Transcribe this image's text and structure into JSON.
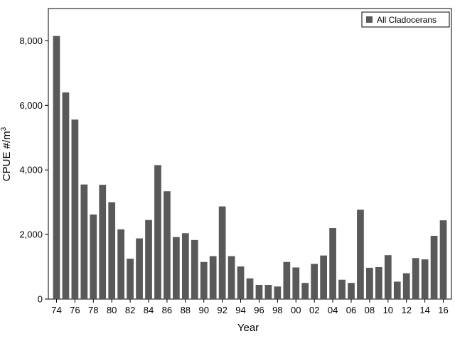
{
  "chart_data": {
    "type": "bar",
    "title": "",
    "xlabel": "Year",
    "ylabel": "CPUE #/m",
    "ylabel_superscript": "3",
    "ylim": [
      0,
      9000
    ],
    "yticks": [
      0,
      2000,
      4000,
      6000,
      8000
    ],
    "ytick_labels": [
      "0",
      "2,000",
      "4,000",
      "6,000",
      "8,000"
    ],
    "grid": false,
    "legend_position": "top-right",
    "bar_color": "#595959",
    "categories": [
      "74",
      "75",
      "76",
      "77",
      "78",
      "79",
      "80",
      "81",
      "82",
      "83",
      "84",
      "85",
      "86",
      "87",
      "88",
      "89",
      "90",
      "91",
      "92",
      "93",
      "94",
      "95",
      "96",
      "97",
      "98",
      "99",
      "00",
      "01",
      "02",
      "03",
      "04",
      "05",
      "06",
      "07",
      "08",
      "09",
      "10",
      "11",
      "12",
      "13",
      "14",
      "15",
      "16"
    ],
    "xtick_labels": [
      "74",
      "76",
      "78",
      "80",
      "82",
      "84",
      "86",
      "88",
      "90",
      "92",
      "94",
      "96",
      "98",
      "00",
      "02",
      "04",
      "06",
      "08",
      "10",
      "12",
      "14",
      "16"
    ],
    "series": [
      {
        "name": "All Cladocerans",
        "values": [
          8150,
          6400,
          5560,
          3550,
          2620,
          3540,
          3000,
          2160,
          1250,
          1880,
          2450,
          4150,
          3340,
          1920,
          2040,
          1830,
          1150,
          1330,
          2870,
          1330,
          1010,
          640,
          440,
          440,
          390,
          1150,
          980,
          500,
          1090,
          1350,
          2200,
          600,
          500,
          2770,
          970,
          990,
          1360,
          540,
          800,
          1270,
          1230,
          1960,
          2440
        ]
      }
    ]
  }
}
